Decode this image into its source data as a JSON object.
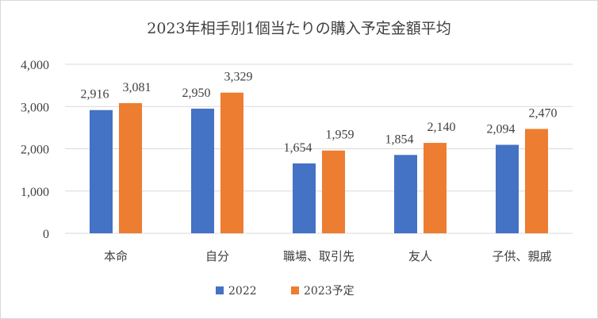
{
  "colors": {
    "series_2022": "#4472c4",
    "series_2023": "#ed7d31",
    "grid": "#d9d9d9",
    "text": "#404040"
  },
  "chart_data": {
    "type": "bar",
    "title": "2023年相手別1個当たりの購入予定金額平均",
    "categories": [
      "本命",
      "自分",
      "職場、取引先",
      "友人",
      "子供、親戚"
    ],
    "series": [
      {
        "name": "2022",
        "values": [
          2916,
          2950,
          1654,
          1854,
          2094
        ],
        "labels": [
          "2,916",
          "2,950",
          "1,654",
          "1,854",
          "2,094"
        ]
      },
      {
        "name": "2023予定",
        "values": [
          3081,
          3329,
          1959,
          2140,
          2470
        ],
        "labels": [
          "3,081",
          "3,329",
          "1,959",
          "2,140",
          "2,470"
        ]
      }
    ],
    "ylim": [
      0,
      4000
    ],
    "yticks": [
      0,
      1000,
      2000,
      3000,
      4000
    ],
    "ytick_labels": [
      "0",
      "1,000",
      "2,000",
      "3,000",
      "4,000"
    ],
    "grid": true,
    "legend_position": "bottom"
  }
}
